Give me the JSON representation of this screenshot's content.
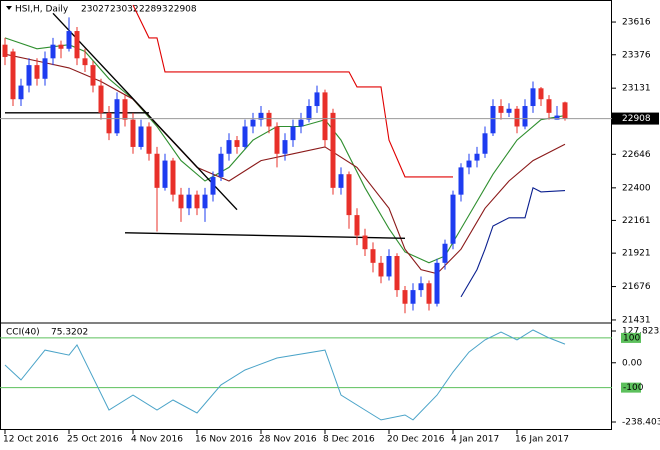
{
  "chart_data": [
    {
      "type": "candlestick",
      "title": "HSI,H, Daily",
      "categories": [
        "12 Oct 2016",
        null,
        null,
        null,
        null,
        null,
        null,
        null,
        "25 Oct 2016",
        null,
        null,
        null,
        null,
        null,
        null,
        null,
        "4 Nov 2016",
        null,
        null,
        null,
        null,
        null,
        null,
        null,
        "16 Nov 2016",
        null,
        null,
        null,
        null,
        null,
        null,
        null,
        "28 Nov 2016",
        null,
        null,
        null,
        null,
        null,
        null,
        null,
        "8 Dec 2016",
        null,
        null,
        null,
        null,
        null,
        null,
        null,
        "20 Dec 2016",
        null,
        null,
        null,
        null,
        null,
        null,
        null,
        "4 Jan 2017",
        null,
        null,
        null,
        null,
        null,
        null,
        null,
        "16 Jan 2017",
        null,
        null,
        null,
        null,
        null,
        null
      ],
      "open": [
        23450,
        23400,
        23050,
        23150,
        23300,
        23200,
        23350,
        23450,
        23420,
        23550,
        23350,
        23300,
        23150,
        22950,
        22800,
        23050,
        22900,
        22700,
        22850,
        22650,
        22400,
        22600,
        22350,
        22250,
        22350,
        22250,
        22350,
        22480,
        22650,
        22750,
        22700,
        22850,
        22900,
        22950,
        22850,
        22650,
        22750,
        22850,
        22900,
        23000,
        23100,
        22950,
        22400,
        22500,
        22200,
        22050,
        21950,
        21850,
        21750,
        21900,
        21650,
        21550,
        21650,
        21700,
        21550,
        21850,
        21990,
        22350,
        22550,
        22600,
        22650,
        22800,
        23000,
        22950,
        22980,
        22850,
        23000,
        23130,
        23050,
        22900,
        23027
      ],
      "high": [
        23500,
        23420,
        23200,
        23350,
        23350,
        23400,
        23500,
        23480,
        23650,
        23580,
        23420,
        23330,
        23200,
        23000,
        23100,
        23080,
        22950,
        22900,
        22880,
        22700,
        22650,
        22620,
        22400,
        22400,
        22380,
        22400,
        22520,
        22700,
        22800,
        22780,
        22900,
        22950,
        23000,
        22970,
        22880,
        22800,
        22900,
        22950,
        23050,
        23150,
        23120,
        22980,
        22550,
        22520,
        22250,
        22100,
        22000,
        21900,
        21950,
        21920,
        21680,
        21700,
        21750,
        21720,
        21880,
        22020,
        22380,
        22580,
        22650,
        22700,
        22850,
        23050,
        23050,
        23020,
        23000,
        23050,
        23180,
        23140,
        23080,
        23000,
        23032
      ],
      "low": [
        23300,
        23000,
        23000,
        23100,
        23150,
        23150,
        23300,
        23350,
        23400,
        23300,
        23250,
        23100,
        22900,
        22750,
        22780,
        22850,
        22650,
        22680,
        22600,
        22080,
        22380,
        22300,
        22150,
        22200,
        22200,
        22150,
        22300,
        22450,
        22600,
        22650,
        22680,
        22800,
        22850,
        22800,
        22550,
        22600,
        22700,
        22800,
        22880,
        22950,
        22700,
        22350,
        22350,
        22100,
        21980,
        21900,
        21780,
        21700,
        21720,
        21600,
        21480,
        21500,
        21600,
        21500,
        21530,
        21800,
        21950,
        22300,
        22500,
        22550,
        22620,
        22780,
        22900,
        22920,
        22800,
        22830,
        22950,
        23000,
        22900,
        22900,
        22893
      ],
      "close": [
        23360,
        23050,
        23150,
        23300,
        23200,
        23350,
        23450,
        23420,
        23550,
        23350,
        23300,
        23150,
        22950,
        22800,
        23050,
        22900,
        22700,
        22850,
        22650,
        22400,
        22600,
        22350,
        22250,
        22350,
        22250,
        22350,
        22480,
        22650,
        22750,
        22700,
        22850,
        22900,
        22950,
        22850,
        22650,
        22750,
        22850,
        22900,
        23000,
        23100,
        22750,
        22400,
        22500,
        22200,
        22050,
        21950,
        21850,
        21750,
        21900,
        21650,
        21550,
        21650,
        21700,
        21550,
        21850,
        21990,
        22350,
        22550,
        22600,
        22650,
        22800,
        23000,
        22950,
        22980,
        22850,
        23000,
        23130,
        23050,
        22950,
        22930,
        22908
      ],
      "up_color": "#1e3cf0",
      "down_color": "#e8302a",
      "lines": [
        {
          "color": "#2f8f2f",
          "x": [
            0,
            4,
            8,
            10,
            13,
            16,
            19,
            22,
            25,
            28,
            31,
            34,
            37,
            40,
            42,
            45,
            48,
            50,
            53,
            55,
            58,
            61,
            64,
            67,
            70
          ],
          "values": [
            23500,
            23420,
            23450,
            23400,
            23200,
            23050,
            22850,
            22600,
            22450,
            22550,
            22750,
            22850,
            22850,
            22900,
            22750,
            22400,
            22100,
            21930,
            21850,
            21900,
            22200,
            22500,
            22750,
            22900,
            22930
          ]
        },
        {
          "color": "#8b1a1a",
          "x": [
            0,
            4,
            8,
            12,
            16,
            20,
            24,
            28,
            32,
            36,
            40,
            44,
            48,
            50,
            52,
            54,
            57,
            60,
            63,
            66,
            70
          ],
          "values": [
            23380,
            23330,
            23280,
            23180,
            23050,
            22800,
            22550,
            22450,
            22600,
            22650,
            22700,
            22550,
            22250,
            21950,
            21800,
            21770,
            21950,
            22250,
            22450,
            22600,
            22720
          ]
        },
        {
          "color": "#e00000",
          "x": [
            16,
            18,
            19,
            20,
            43,
            44,
            47,
            48,
            50,
            56
          ],
          "values": [
            23741,
            23500,
            23500,
            23250,
            23250,
            23140,
            23140,
            22750,
            22480,
            22480
          ]
        },
        {
          "color": "#0a1f8f",
          "x": [
            57,
            59,
            60,
            61,
            63,
            65,
            66,
            67,
            70
          ],
          "values": [
            21600,
            21800,
            21950,
            22120,
            22180,
            22180,
            22400,
            22370,
            22380
          ]
        },
        {
          "color": "#000000",
          "x": [
            0,
            18
          ],
          "values": [
            22950,
            22950
          ]
        },
        {
          "color": "#000000",
          "x": [
            6,
            29
          ],
          "values": [
            23680,
            22240
          ]
        },
        {
          "color": "#000000",
          "x": [
            15,
            50
          ],
          "values": [
            22070,
            22030
          ]
        }
      ],
      "ylim": [
        21416,
        23741
      ],
      "yticks": [
        23616,
        23376,
        23131,
        22646,
        22400,
        22161,
        21921,
        21676,
        21431
      ]
    },
    {
      "type": "line",
      "title": "CCI(40)",
      "color": "#4aa3c8",
      "x": [
        0,
        2,
        5,
        8,
        9,
        13,
        16,
        19,
        21,
        24,
        27,
        30,
        34,
        40,
        42,
        45,
        47,
        50,
        51,
        54,
        56,
        58,
        60,
        62,
        64,
        66,
        68,
        70
      ],
      "values": [
        -9,
        -69,
        51,
        31,
        72,
        -190,
        -130,
        -190,
        -150,
        -202,
        -89,
        -29,
        19,
        51,
        -130,
        -190,
        -230,
        -210,
        -230,
        -130,
        -37,
        43,
        92,
        124,
        92,
        132,
        100,
        75.3202
      ],
      "levels": [
        100,
        -100
      ],
      "level_color": "#5cc05c",
      "ylim": [
        -262.5,
        152
      ],
      "yticks": [
        127.8232,
        {
          "value": 0,
          "label": "0.00"
        },
        -238.403
      ]
    }
  ]
}
